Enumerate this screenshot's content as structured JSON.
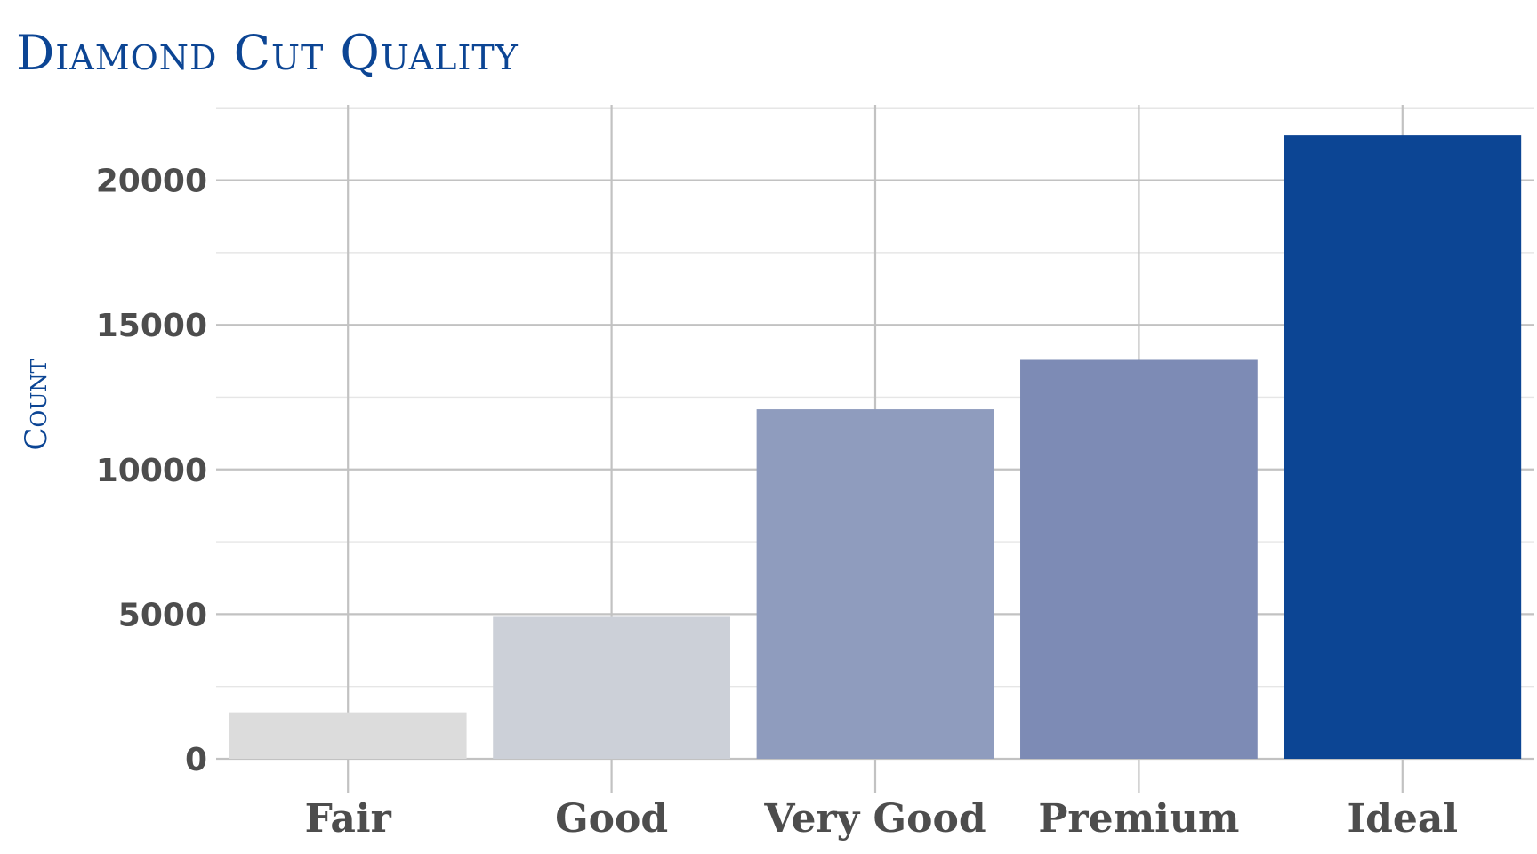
{
  "chart_data": {
    "type": "bar",
    "title": "Diamond Cut Quality",
    "xlabel": "",
    "ylabel": "Count",
    "categories": [
      "Fair",
      "Good",
      "Very Good",
      "Premium",
      "Ideal"
    ],
    "values": [
      1610,
      4906,
      12082,
      13791,
      21551
    ],
    "colors": [
      "#dcdcdc",
      "#ccd0d8",
      "#8f9cbe",
      "#7d8bb5",
      "#0c4594"
    ],
    "ylim": [
      0,
      22600
    ],
    "yticks": [
      0,
      5000,
      10000,
      15000,
      20000
    ],
    "grid": true,
    "legend": "none"
  }
}
